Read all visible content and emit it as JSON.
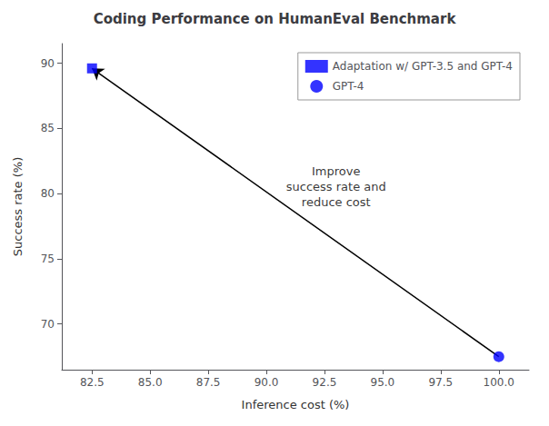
{
  "chart_data": {
    "type": "scatter",
    "title": "Coding Performance on HumanEval Benchmark",
    "xlabel": "Inference cost (%)",
    "ylabel": "Success rate (%)",
    "series": [
      {
        "name": "Adaptation w/ GPT-3.5 and GPT-4",
        "color": "blue",
        "marker": "square",
        "x": [
          82.5
        ],
        "values": [
          89.6
        ]
      },
      {
        "name": "GPT-4",
        "color": "blue",
        "marker": "circle",
        "x": [
          100.0
        ],
        "values": [
          67.5
        ]
      }
    ],
    "annotations": [
      {
        "text": "Improve\nsuccess rate and\nreduce cost",
        "x": 93.0,
        "y": 80.5
      }
    ],
    "xlim": [
      81.2,
      101.3
    ],
    "ylim": [
      66.5,
      91.5
    ],
    "xticks": [
      82.5,
      {
        "value": 85,
        "label": "85.0"
      },
      87.5,
      {
        "value": 90,
        "label": "90.0"
      },
      92.5,
      {
        "value": 95,
        "label": "95.0"
      },
      97.5,
      {
        "value": 100,
        "label": "100.0"
      }
    ],
    "yticks": [
      70,
      75,
      80,
      85,
      90
    ],
    "grid": false,
    "legend": "upper right"
  }
}
